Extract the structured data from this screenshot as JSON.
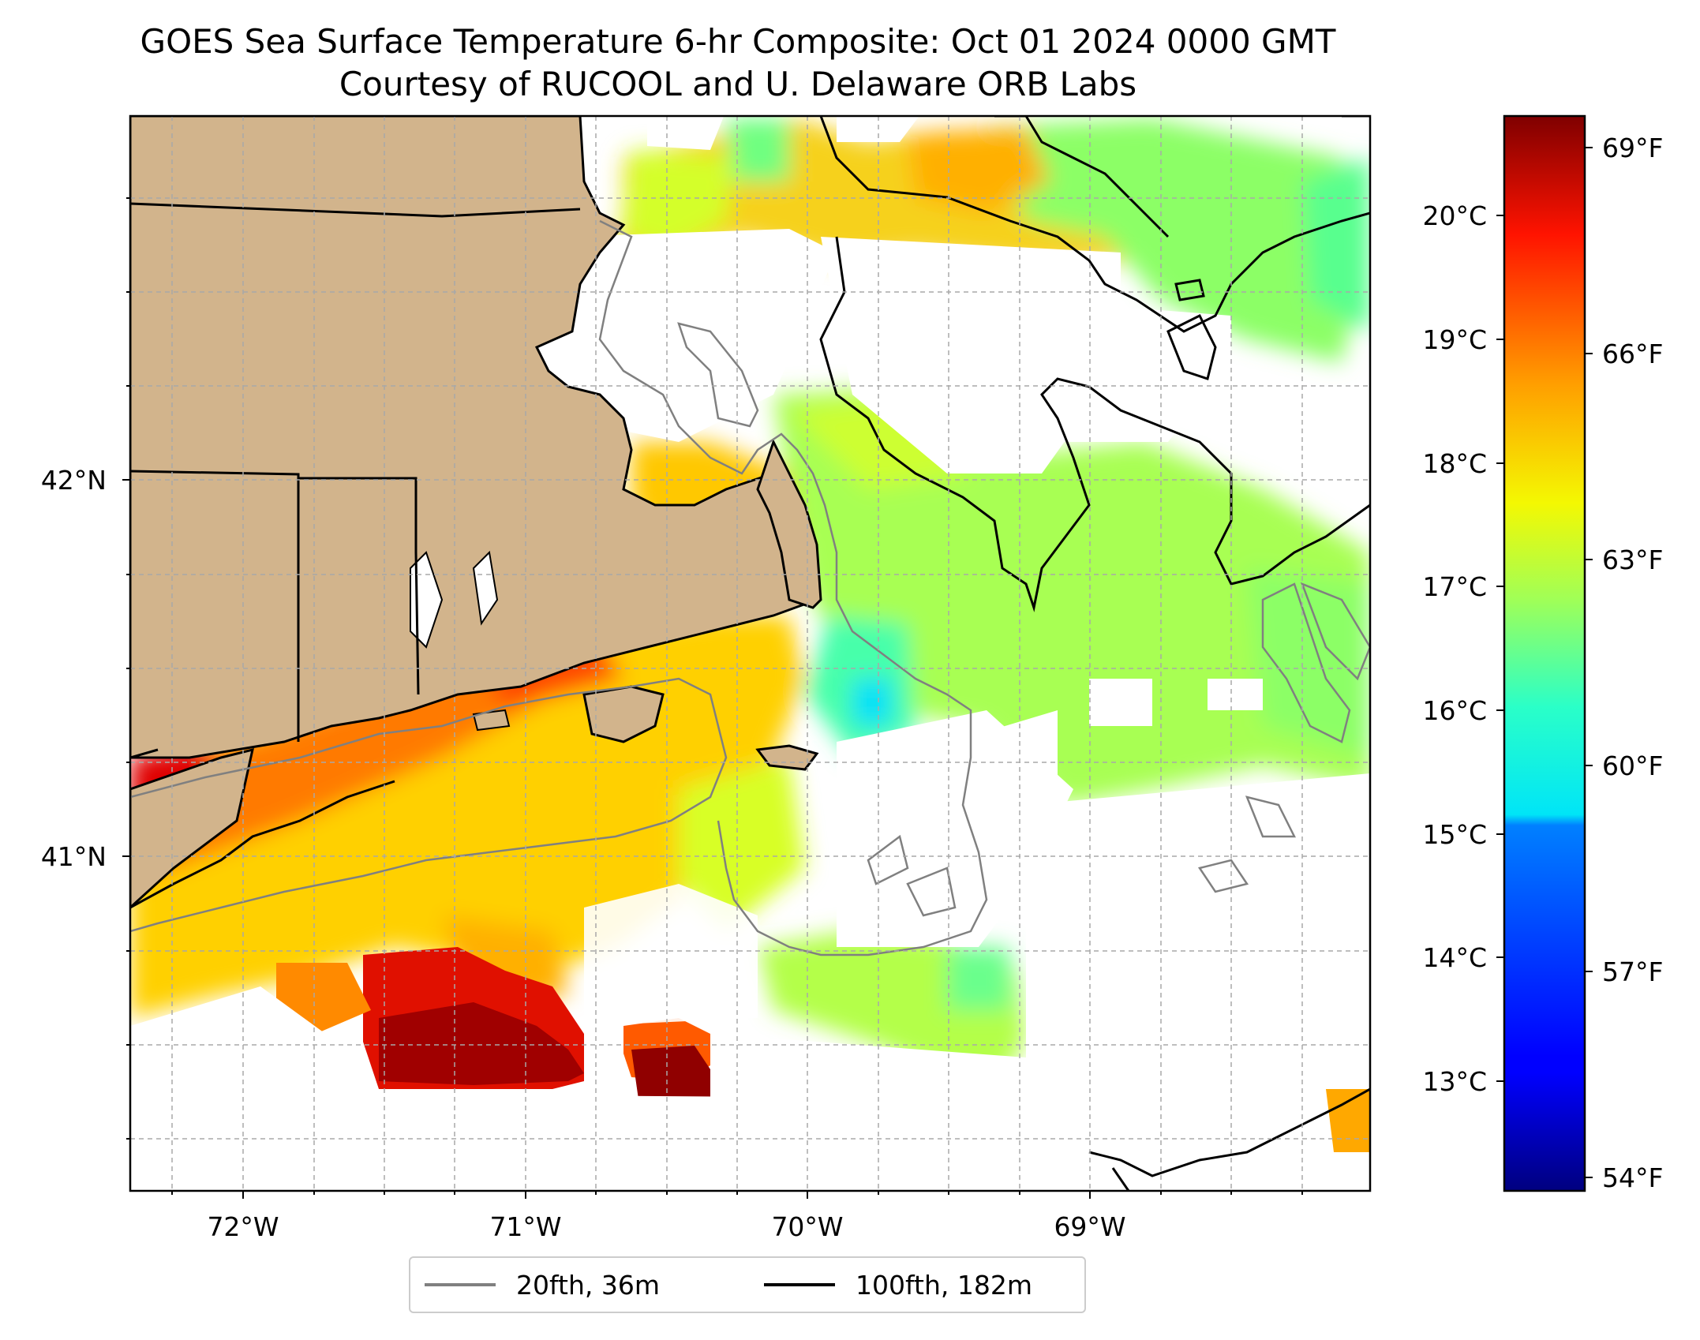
{
  "title": {
    "line1": "GOES Sea Surface Temperature 6-hr Composite: Oct 01 2024 0000 GMT",
    "line2": "Courtesy of RUCOOL and U. Delaware ORB Labs"
  },
  "map": {
    "extent": {
      "lon": [
        -72.4,
        -68.0
      ],
      "lat": [
        40.15,
        42.95
      ]
    },
    "lon_ticks": [
      {
        "value": -72,
        "label": "72°W"
      },
      {
        "value": -71,
        "label": "71°W"
      },
      {
        "value": -70,
        "label": "70°W"
      },
      {
        "value": -69,
        "label": "69°W"
      }
    ],
    "lat_ticks": [
      {
        "value": 42,
        "label": "42°N"
      },
      {
        "value": 41,
        "label": "41°N"
      }
    ],
    "land_color": "#d2b48c",
    "gridlines": "dashed",
    "legend": [
      {
        "label": "20fth, 36m",
        "color": "#808080"
      },
      {
        "label": "100fth, 182m",
        "color": "#000000"
      }
    ]
  },
  "colorbar": {
    "colormap": "jet",
    "range_c": [
      12.1,
      20.8
    ],
    "celsius_ticks": [
      {
        "value": 13,
        "label": "13°C"
      },
      {
        "value": 14,
        "label": "14°C"
      },
      {
        "value": 15,
        "label": "15°C"
      },
      {
        "value": 16,
        "label": "16°C"
      },
      {
        "value": 17,
        "label": "17°C"
      },
      {
        "value": 18,
        "label": "18°C"
      },
      {
        "value": 19,
        "label": "19°C"
      },
      {
        "value": 20,
        "label": "20°C"
      }
    ],
    "fahrenheit_ticks": [
      {
        "value": 54,
        "label": "54°F"
      },
      {
        "value": 57,
        "label": "57°F"
      },
      {
        "value": 60,
        "label": "60°F"
      },
      {
        "value": 63,
        "label": "63°F"
      },
      {
        "value": 66,
        "label": "66°F"
      },
      {
        "value": 69,
        "label": "69°F"
      }
    ]
  }
}
